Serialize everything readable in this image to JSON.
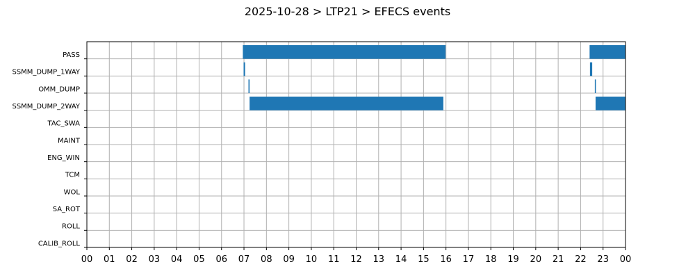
{
  "chart_data": {
    "type": "bar",
    "orientation": "horizontal-timeline",
    "title": "2025-10-28 > LTP21 > EFECS events",
    "xlabel": "",
    "ylabel": "",
    "grid": true,
    "bar_color": "#1f77b4",
    "xlim_hours": [
      0,
      24
    ],
    "x_ticks": [
      "00",
      "01",
      "02",
      "03",
      "04",
      "05",
      "06",
      "07",
      "08",
      "09",
      "10",
      "11",
      "12",
      "13",
      "14",
      "15",
      "16",
      "17",
      "18",
      "19",
      "20",
      "21",
      "22",
      "23",
      "00"
    ],
    "categories": [
      "PASS",
      "SSMM_DUMP_1WAY",
      "OMM_DUMP",
      "SSMM_DUMP_2WAY",
      "TAC_SWA",
      "MAINT",
      "ENG_WIN",
      "TCM",
      "WOL",
      "SA_ROT",
      "ROLL",
      "CALIB_ROLL"
    ],
    "events": [
      {
        "category": "PASS",
        "start": "06:57",
        "end": "15:59"
      },
      {
        "category": "PASS",
        "start": "22:24",
        "end": "24:00"
      },
      {
        "category": "SSMM_DUMP_1WAY",
        "start": "06:59",
        "end": "07:03"
      },
      {
        "category": "SSMM_DUMP_1WAY",
        "start": "22:25",
        "end": "22:31"
      },
      {
        "category": "OMM_DUMP",
        "start": "07:12",
        "end": "07:15"
      },
      {
        "category": "OMM_DUMP",
        "start": "22:38",
        "end": "22:40"
      },
      {
        "category": "SSMM_DUMP_2WAY",
        "start": "07:15",
        "end": "15:53"
      },
      {
        "category": "SSMM_DUMP_2WAY",
        "start": "22:40",
        "end": "24:00"
      }
    ]
  }
}
